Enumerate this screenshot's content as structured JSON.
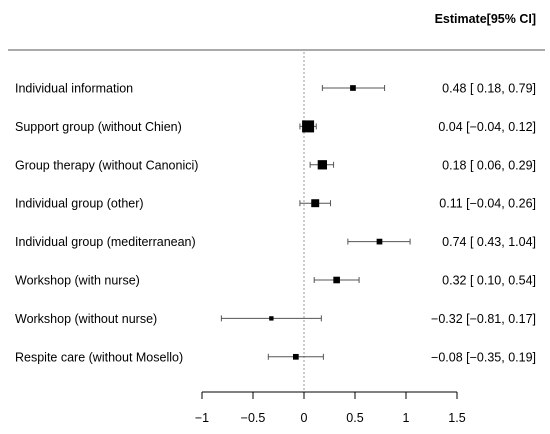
{
  "chart_data": {
    "type": "forest",
    "header_right": "Estimate[95% CI]",
    "xlim": [
      -1,
      1.5
    ],
    "xticks": [
      -1,
      -0.5,
      0,
      0.5,
      1,
      1.5
    ],
    "xtick_labels": [
      "−1",
      "−0.5",
      "0",
      "0.5",
      "1",
      "1.5"
    ],
    "reference_line": 0,
    "rows": [
      {
        "label": "Individual information",
        "estimate": 0.48,
        "ci_low": 0.18,
        "ci_high": 0.79,
        "weight": 0.3,
        "text": "0.48 [ 0.18, 0.79]"
      },
      {
        "label": "Support group (without Chien)",
        "estimate": 0.04,
        "ci_low": -0.04,
        "ci_high": 0.12,
        "weight": 1.0,
        "text": "0.04 [−0.04, 0.12]"
      },
      {
        "label": "Group therapy (without Canonici)",
        "estimate": 0.18,
        "ci_low": 0.06,
        "ci_high": 0.29,
        "weight": 0.7,
        "text": "0.18 [ 0.06, 0.29]"
      },
      {
        "label": "Individual group (other)",
        "estimate": 0.11,
        "ci_low": -0.04,
        "ci_high": 0.26,
        "weight": 0.55,
        "text": "0.11 [−0.04, 0.26]"
      },
      {
        "label": "Individual group (mediterranean)",
        "estimate": 0.74,
        "ci_low": 0.43,
        "ci_high": 1.04,
        "weight": 0.3,
        "text": "0.74 [ 0.43, 1.04]"
      },
      {
        "label": "Workshop (with nurse)",
        "estimate": 0.32,
        "ci_low": 0.1,
        "ci_high": 0.54,
        "weight": 0.4,
        "text": "0.32 [ 0.10, 0.54]"
      },
      {
        "label": "Workshop (without nurse)",
        "estimate": -0.32,
        "ci_low": -0.81,
        "ci_high": 0.17,
        "weight": 0.15,
        "text": "−0.32 [−0.81, 0.17]"
      },
      {
        "label": "Respite care (without Mosello)",
        "estimate": -0.08,
        "ci_low": -0.35,
        "ci_high": 0.19,
        "weight": 0.3,
        "text": "−0.08 [−0.35, 0.19]"
      }
    ],
    "colors": {
      "ink": "#000000",
      "header_rule": "#555555",
      "ci_line": "#555555",
      "reference_line": "#999999"
    }
  }
}
